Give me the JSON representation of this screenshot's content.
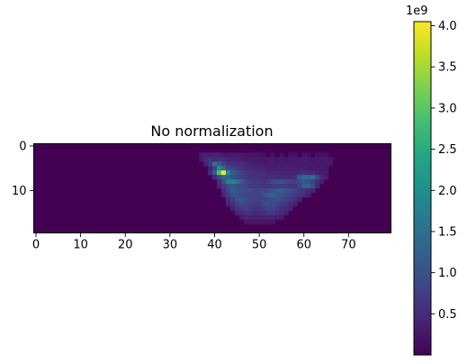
{
  "chart_data": {
    "type": "heatmap",
    "title": "No normalization",
    "colormap": "viridis",
    "shape": [
      20,
      80
    ],
    "xlim": [
      -0.5,
      79.5
    ],
    "ylim": [
      19.5,
      -0.5
    ],
    "x_ticks": [
      0,
      10,
      20,
      30,
      40,
      50,
      60,
      70
    ],
    "y_ticks": [
      0,
      10
    ],
    "colorbar": {
      "vmin": 0.0,
      "vmax": 4.05,
      "ticks": [
        0.5,
        1.0,
        1.5,
        2.0,
        2.5,
        3.0,
        3.5,
        4.0
      ],
      "tick_labels": [
        "0.5",
        "1.0",
        "1.5",
        "2.0",
        "2.5",
        "3.0",
        "3.5",
        "4.0"
      ],
      "offset_text": "1e9"
    },
    "background_value": 0.0,
    "cells": [
      [
        2,
        37,
        0.3
      ],
      [
        2,
        38,
        0.4
      ],
      [
        2,
        39,
        0.35
      ],
      [
        2,
        40,
        0.4
      ],
      [
        2,
        41,
        0.4
      ],
      [
        2,
        42,
        0.3
      ],
      [
        2,
        43,
        0.3
      ],
      [
        2,
        44,
        0.35
      ],
      [
        2,
        45,
        0.3
      ],
      [
        2,
        46,
        0.3
      ],
      [
        2,
        47,
        0.25
      ],
      [
        2,
        48,
        0.25
      ],
      [
        2,
        49,
        0.25
      ],
      [
        2,
        50,
        0.2
      ],
      [
        2,
        51,
        0.2
      ],
      [
        2,
        53,
        0.2
      ],
      [
        2,
        55,
        0.2
      ],
      [
        2,
        57,
        0.2
      ],
      [
        2,
        58,
        0.2
      ],
      [
        2,
        60,
        0.25
      ],
      [
        2,
        61,
        0.2
      ],
      [
        2,
        63,
        0.2
      ],
      [
        2,
        64,
        0.2
      ],
      [
        2,
        65,
        0.2
      ],
      [
        3,
        37,
        0.3
      ],
      [
        3,
        38,
        0.5
      ],
      [
        3,
        39,
        0.6
      ],
      [
        3,
        40,
        0.5
      ],
      [
        3,
        41,
        0.5
      ],
      [
        3,
        42,
        0.5
      ],
      [
        3,
        43,
        0.4
      ],
      [
        3,
        44,
        0.4
      ],
      [
        3,
        45,
        0.4
      ],
      [
        3,
        46,
        0.35
      ],
      [
        3,
        47,
        0.3
      ],
      [
        3,
        48,
        0.3
      ],
      [
        3,
        49,
        0.3
      ],
      [
        3,
        50,
        0.3
      ],
      [
        3,
        51,
        0.25
      ],
      [
        3,
        52,
        0.25
      ],
      [
        3,
        53,
        0.3
      ],
      [
        3,
        54,
        0.25
      ],
      [
        3,
        55,
        0.3
      ],
      [
        3,
        56,
        0.25
      ],
      [
        3,
        57,
        0.3
      ],
      [
        3,
        58,
        0.3
      ],
      [
        3,
        59,
        0.3
      ],
      [
        3,
        60,
        0.3
      ],
      [
        3,
        61,
        0.3
      ],
      [
        3,
        62,
        0.25
      ],
      [
        3,
        63,
        0.3
      ],
      [
        3,
        64,
        0.3
      ],
      [
        3,
        65,
        0.3
      ],
      [
        3,
        66,
        0.25
      ],
      [
        4,
        38,
        0.4
      ],
      [
        4,
        39,
        0.7
      ],
      [
        4,
        40,
        1.5
      ],
      [
        4,
        41,
        1.2
      ],
      [
        4,
        42,
        0.8
      ],
      [
        4,
        43,
        0.6
      ],
      [
        4,
        44,
        0.6
      ],
      [
        4,
        45,
        0.5
      ],
      [
        4,
        46,
        0.55
      ],
      [
        4,
        47,
        0.4
      ],
      [
        4,
        48,
        0.4
      ],
      [
        4,
        49,
        0.35
      ],
      [
        4,
        50,
        0.35
      ],
      [
        4,
        51,
        0.3
      ],
      [
        4,
        52,
        0.3
      ],
      [
        4,
        53,
        0.35
      ],
      [
        4,
        54,
        0.3
      ],
      [
        4,
        55,
        0.3
      ],
      [
        4,
        56,
        0.3
      ],
      [
        4,
        57,
        0.3
      ],
      [
        4,
        58,
        0.3
      ],
      [
        4,
        59,
        0.3
      ],
      [
        4,
        60,
        0.3
      ],
      [
        4,
        61,
        0.3
      ],
      [
        4,
        62,
        0.3
      ],
      [
        4,
        63,
        0.3
      ],
      [
        4,
        64,
        0.3
      ],
      [
        4,
        65,
        0.3
      ],
      [
        4,
        66,
        0.25
      ],
      [
        5,
        39,
        0.4
      ],
      [
        5,
        40,
        0.8
      ],
      [
        5,
        41,
        2.0
      ],
      [
        5,
        42,
        1.4
      ],
      [
        5,
        43,
        0.9
      ],
      [
        5,
        44,
        0.8
      ],
      [
        5,
        45,
        0.7
      ],
      [
        5,
        46,
        0.6
      ],
      [
        5,
        47,
        0.5
      ],
      [
        5,
        48,
        0.45
      ],
      [
        5,
        49,
        0.45
      ],
      [
        5,
        50,
        0.4
      ],
      [
        5,
        51,
        0.4
      ],
      [
        5,
        52,
        0.35
      ],
      [
        5,
        53,
        0.35
      ],
      [
        5,
        54,
        0.35
      ],
      [
        5,
        55,
        0.35
      ],
      [
        5,
        56,
        0.4
      ],
      [
        5,
        57,
        0.35
      ],
      [
        5,
        58,
        0.35
      ],
      [
        5,
        59,
        0.35
      ],
      [
        5,
        60,
        0.35
      ],
      [
        5,
        61,
        0.3
      ],
      [
        5,
        62,
        0.3
      ],
      [
        5,
        63,
        0.3
      ],
      [
        5,
        64,
        0.3
      ],
      [
        5,
        65,
        0.25
      ],
      [
        6,
        39,
        0.5
      ],
      [
        6,
        40,
        1.2
      ],
      [
        6,
        41,
        2.9
      ],
      [
        6,
        42,
        4.05
      ],
      [
        6,
        43,
        2.0
      ],
      [
        6,
        44,
        1.2
      ],
      [
        6,
        45,
        1.0
      ],
      [
        6,
        46,
        0.8
      ],
      [
        6,
        47,
        0.7
      ],
      [
        6,
        48,
        0.6
      ],
      [
        6,
        49,
        0.55
      ],
      [
        6,
        50,
        0.5
      ],
      [
        6,
        51,
        0.5
      ],
      [
        6,
        52,
        0.45
      ],
      [
        6,
        53,
        0.45
      ],
      [
        6,
        54,
        0.45
      ],
      [
        6,
        55,
        0.45
      ],
      [
        6,
        56,
        0.4
      ],
      [
        6,
        57,
        0.4
      ],
      [
        6,
        58,
        0.4
      ],
      [
        6,
        59,
        0.45
      ],
      [
        6,
        60,
        0.5
      ],
      [
        6,
        61,
        0.5
      ],
      [
        6,
        62,
        0.45
      ],
      [
        6,
        63,
        0.4
      ],
      [
        6,
        64,
        0.35
      ],
      [
        6,
        65,
        0.3
      ],
      [
        7,
        40,
        0.5
      ],
      [
        7,
        41,
        0.9
      ],
      [
        7,
        42,
        1.4
      ],
      [
        7,
        43,
        1.3
      ],
      [
        7,
        44,
        1.0
      ],
      [
        7,
        45,
        0.9
      ],
      [
        7,
        46,
        0.8
      ],
      [
        7,
        47,
        0.7
      ],
      [
        7,
        48,
        0.6
      ],
      [
        7,
        49,
        0.6
      ],
      [
        7,
        50,
        0.55
      ],
      [
        7,
        51,
        0.5
      ],
      [
        7,
        52,
        0.5
      ],
      [
        7,
        53,
        0.5
      ],
      [
        7,
        54,
        0.5
      ],
      [
        7,
        55,
        0.5
      ],
      [
        7,
        56,
        0.5
      ],
      [
        7,
        57,
        0.5
      ],
      [
        7,
        58,
        0.6
      ],
      [
        7,
        59,
        1.2
      ],
      [
        7,
        60,
        1.5
      ],
      [
        7,
        61,
        1.3
      ],
      [
        7,
        62,
        1.5
      ],
      [
        7,
        63,
        0.9
      ],
      [
        7,
        64,
        0.5
      ],
      [
        7,
        65,
        0.35
      ],
      [
        8,
        41,
        0.5
      ],
      [
        8,
        42,
        1.0
      ],
      [
        8,
        43,
        1.8
      ],
      [
        8,
        44,
        1.8
      ],
      [
        8,
        45,
        1.6
      ],
      [
        8,
        46,
        1.2
      ],
      [
        8,
        47,
        0.9
      ],
      [
        8,
        48,
        0.8
      ],
      [
        8,
        49,
        0.7
      ],
      [
        8,
        50,
        0.7
      ],
      [
        8,
        51,
        0.6
      ],
      [
        8,
        52,
        0.7
      ],
      [
        8,
        53,
        0.9
      ],
      [
        8,
        54,
        1.0
      ],
      [
        8,
        55,
        1.1
      ],
      [
        8,
        56,
        0.9
      ],
      [
        8,
        57,
        0.8
      ],
      [
        8,
        58,
        0.8
      ],
      [
        8,
        59,
        0.9
      ],
      [
        8,
        60,
        1.1
      ],
      [
        8,
        61,
        1.0
      ],
      [
        8,
        62,
        0.8
      ],
      [
        8,
        63,
        0.5
      ],
      [
        8,
        64,
        0.35
      ],
      [
        9,
        41,
        0.4
      ],
      [
        9,
        42,
        0.7
      ],
      [
        9,
        43,
        1.0
      ],
      [
        9,
        44,
        1.1
      ],
      [
        9,
        45,
        1.0
      ],
      [
        9,
        46,
        0.9
      ],
      [
        9,
        47,
        0.8
      ],
      [
        9,
        48,
        0.7
      ],
      [
        9,
        49,
        0.7
      ],
      [
        9,
        50,
        0.65
      ],
      [
        9,
        51,
        0.6
      ],
      [
        9,
        52,
        0.6
      ],
      [
        9,
        53,
        0.7
      ],
      [
        9,
        54,
        0.7
      ],
      [
        9,
        55,
        0.7
      ],
      [
        9,
        56,
        0.7
      ],
      [
        9,
        57,
        0.6
      ],
      [
        9,
        58,
        0.6
      ],
      [
        9,
        59,
        0.8
      ],
      [
        9,
        60,
        1.3
      ],
      [
        9,
        61,
        1.3
      ],
      [
        9,
        62,
        0.9
      ],
      [
        9,
        63,
        0.45
      ],
      [
        10,
        42,
        0.5
      ],
      [
        10,
        43,
        0.8
      ],
      [
        10,
        44,
        1.2
      ],
      [
        10,
        45,
        1.1
      ],
      [
        10,
        46,
        1.0
      ],
      [
        10,
        47,
        0.9
      ],
      [
        10,
        48,
        1.0
      ],
      [
        10,
        49,
        0.9
      ],
      [
        10,
        50,
        0.8
      ],
      [
        10,
        51,
        0.8
      ],
      [
        10,
        52,
        0.9
      ],
      [
        10,
        53,
        1.0
      ],
      [
        10,
        54,
        1.1
      ],
      [
        10,
        55,
        1.3
      ],
      [
        10,
        56,
        1.1
      ],
      [
        10,
        57,
        0.9
      ],
      [
        10,
        58,
        0.8
      ],
      [
        10,
        59,
        0.7
      ],
      [
        10,
        60,
        0.6
      ],
      [
        10,
        61,
        0.5
      ],
      [
        10,
        62,
        0.4
      ],
      [
        11,
        42,
        0.4
      ],
      [
        11,
        43,
        0.7
      ],
      [
        11,
        44,
        1.0
      ],
      [
        11,
        45,
        1.0
      ],
      [
        11,
        46,
        0.9
      ],
      [
        11,
        47,
        0.8
      ],
      [
        11,
        48,
        0.8
      ],
      [
        11,
        49,
        0.8
      ],
      [
        11,
        50,
        0.8
      ],
      [
        11,
        51,
        1.0
      ],
      [
        11,
        52,
        1.2
      ],
      [
        11,
        53,
        1.3
      ],
      [
        11,
        54,
        1.1
      ],
      [
        11,
        55,
        1.0
      ],
      [
        11,
        56,
        0.9
      ],
      [
        11,
        57,
        0.8
      ],
      [
        11,
        58,
        0.7
      ],
      [
        11,
        59,
        0.6
      ],
      [
        11,
        60,
        0.5
      ],
      [
        11,
        61,
        0.4
      ],
      [
        12,
        43,
        0.5
      ],
      [
        12,
        44,
        0.7
      ],
      [
        12,
        45,
        1.0
      ],
      [
        12,
        46,
        1.1
      ],
      [
        12,
        47,
        1.0
      ],
      [
        12,
        48,
        0.9
      ],
      [
        12,
        49,
        0.8
      ],
      [
        12,
        50,
        0.8
      ],
      [
        12,
        51,
        0.8
      ],
      [
        12,
        52,
        0.9
      ],
      [
        12,
        53,
        1.0
      ],
      [
        12,
        54,
        1.0
      ],
      [
        12,
        55,
        0.9
      ],
      [
        12,
        56,
        0.8
      ],
      [
        12,
        57,
        0.7
      ],
      [
        12,
        58,
        0.5
      ],
      [
        12,
        59,
        0.4
      ],
      [
        13,
        43,
        0.4
      ],
      [
        13,
        44,
        0.6
      ],
      [
        13,
        45,
        0.8
      ],
      [
        13,
        46,
        0.9
      ],
      [
        13,
        47,
        0.8
      ],
      [
        13,
        48,
        0.7
      ],
      [
        13,
        49,
        0.7
      ],
      [
        13,
        50,
        0.7
      ],
      [
        13,
        51,
        0.9
      ],
      [
        13,
        52,
        1.0
      ],
      [
        13,
        53,
        0.9
      ],
      [
        13,
        54,
        0.8
      ],
      [
        13,
        55,
        0.7
      ],
      [
        13,
        56,
        0.6
      ],
      [
        13,
        57,
        0.5
      ],
      [
        13,
        58,
        0.4
      ],
      [
        14,
        44,
        0.4
      ],
      [
        14,
        45,
        0.6
      ],
      [
        14,
        46,
        0.7
      ],
      [
        14,
        47,
        0.8
      ],
      [
        14,
        48,
        0.7
      ],
      [
        14,
        49,
        0.6
      ],
      [
        14,
        50,
        0.6
      ],
      [
        14,
        51,
        0.7
      ],
      [
        14,
        52,
        0.8
      ],
      [
        14,
        53,
        0.8
      ],
      [
        14,
        54,
        0.7
      ],
      [
        14,
        55,
        0.6
      ],
      [
        14,
        56,
        0.5
      ],
      [
        14,
        57,
        0.4
      ],
      [
        15,
        45,
        0.4
      ],
      [
        15,
        46,
        0.5
      ],
      [
        15,
        47,
        0.6
      ],
      [
        15,
        48,
        0.6
      ],
      [
        15,
        49,
        0.5
      ],
      [
        15,
        50,
        0.5
      ],
      [
        15,
        51,
        0.6
      ],
      [
        15,
        52,
        0.7
      ],
      [
        15,
        53,
        0.7
      ],
      [
        15,
        54,
        0.6
      ],
      [
        15,
        55,
        0.5
      ],
      [
        15,
        56,
        0.4
      ],
      [
        16,
        46,
        0.3
      ],
      [
        16,
        47,
        0.4
      ],
      [
        16,
        48,
        0.4
      ],
      [
        16,
        49,
        0.35
      ],
      [
        16,
        50,
        0.35
      ],
      [
        16,
        51,
        0.4
      ],
      [
        16,
        52,
        0.45
      ],
      [
        16,
        53,
        0.4
      ],
      [
        16,
        54,
        0.35
      ],
      [
        16,
        55,
        0.3
      ],
      [
        17,
        47,
        0.25
      ],
      [
        17,
        48,
        0.25
      ],
      [
        17,
        49,
        0.25
      ],
      [
        17,
        50,
        0.25
      ],
      [
        17,
        51,
        0.25
      ],
      [
        17,
        52,
        0.25
      ],
      [
        17,
        53,
        0.25
      ]
    ]
  }
}
